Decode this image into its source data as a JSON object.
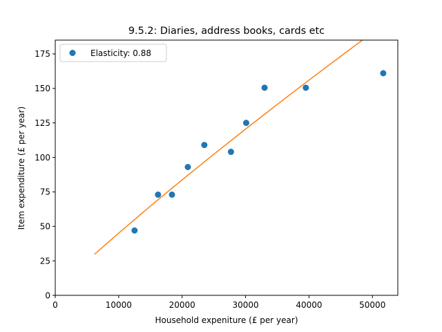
{
  "chart_data": {
    "type": "scatter",
    "title": "9.5.2: Diaries, address books, cards etc",
    "xlabel": "Household expeniture (£ per year)",
    "ylabel": "Item expenditure (£ per year)",
    "xlim": [
      0,
      54000
    ],
    "ylim": [
      0,
      185
    ],
    "xticks": [
      0,
      10000,
      20000,
      30000,
      40000,
      50000
    ],
    "yticks": [
      0,
      25,
      50,
      75,
      100,
      125,
      150,
      175
    ],
    "grid": false,
    "legend_position": "top-left",
    "series": [
      {
        "name": "Elasticity: 0.88",
        "kind": "scatter",
        "color": "#1f77b4",
        "points": [
          {
            "x": 12500,
            "y": 47
          },
          {
            "x": 16200,
            "y": 73
          },
          {
            "x": 18400,
            "y": 73
          },
          {
            "x": 20900,
            "y": 93
          },
          {
            "x": 23500,
            "y": 109
          },
          {
            "x": 27700,
            "y": 104
          },
          {
            "x": 30100,
            "y": 125
          },
          {
            "x": 33000,
            "y": 150.5
          },
          {
            "x": 39500,
            "y": 150.5
          },
          {
            "x": 51700,
            "y": 161
          }
        ]
      },
      {
        "kind": "line",
        "color": "#ff7f0e",
        "elasticity": 0.88,
        "x_range": [
          6200,
          49500
        ],
        "points": [
          {
            "x": 6200,
            "y": 29.8
          },
          {
            "x": 10000,
            "y": 45.1
          },
          {
            "x": 15000,
            "y": 64.7
          },
          {
            "x": 20000,
            "y": 83.7
          },
          {
            "x": 25000,
            "y": 102.3
          },
          {
            "x": 30000,
            "y": 120.5
          },
          {
            "x": 35000,
            "y": 138.4
          },
          {
            "x": 40000,
            "y": 156.0
          },
          {
            "x": 45000,
            "y": 173.3
          },
          {
            "x": 49500,
            "y": 188.7
          }
        ]
      }
    ]
  }
}
